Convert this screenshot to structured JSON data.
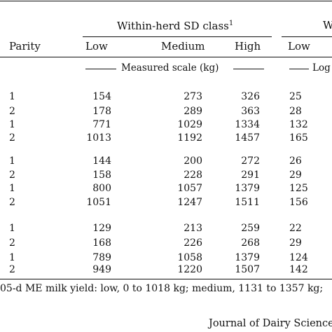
{
  "table": {
    "group_header_1": "Within-herd SD class",
    "group_header_1_footnote": "1",
    "group_header_2_partial": "W",
    "columns": {
      "parity": "Parity",
      "low": "Low",
      "medium": "Medium",
      "high": "High",
      "low2": "Low"
    },
    "scale_label_1": "Measured scale (kg)",
    "scale_label_2": "Log",
    "groups": [
      {
        "rows": [
          {
            "parity": "1",
            "low": "154",
            "medium": "273",
            "high": "326",
            "low2": "25"
          },
          {
            "parity": "2",
            "low": "178",
            "medium": "289",
            "high": "363",
            "low2": "28"
          },
          {
            "parity": "1",
            "low": "771",
            "medium": "1029",
            "high": "1334",
            "low2": "132"
          },
          {
            "parity": "2",
            "low": "1013",
            "medium": "1192",
            "high": "1457",
            "low2": "165"
          }
        ]
      },
      {
        "rows": [
          {
            "parity": "1",
            "low": "144",
            "medium": "200",
            "high": "272",
            "low2": "26"
          },
          {
            "parity": "2",
            "low": "158",
            "medium": "228",
            "high": "291",
            "low2": "29"
          },
          {
            "parity": "1",
            "low": "800",
            "medium": "1057",
            "high": "1379",
            "low2": "125"
          },
          {
            "parity": "2",
            "low": "1051",
            "medium": "1247",
            "high": "1511",
            "low2": "156"
          }
        ]
      },
      {
        "rows": [
          {
            "parity": "1",
            "low": "129",
            "medium": "213",
            "high": "259",
            "low2": "22"
          },
          {
            "parity": "2",
            "low": "168",
            "medium": "226",
            "high": "268",
            "low2": "29"
          },
          {
            "parity": "1",
            "low": "789",
            "medium": "1058",
            "high": "1379",
            "low2": "124"
          },
          {
            "parity": "2",
            "low": "949",
            "medium": "1220",
            "high": "1507",
            "low2": "142"
          }
        ]
      }
    ]
  },
  "footnote": "05-d ME milk yield: low, 0 to 1018 kg; medium, 1131 to 1357 kg;",
  "journal": "Journal of Dairy Science"
}
